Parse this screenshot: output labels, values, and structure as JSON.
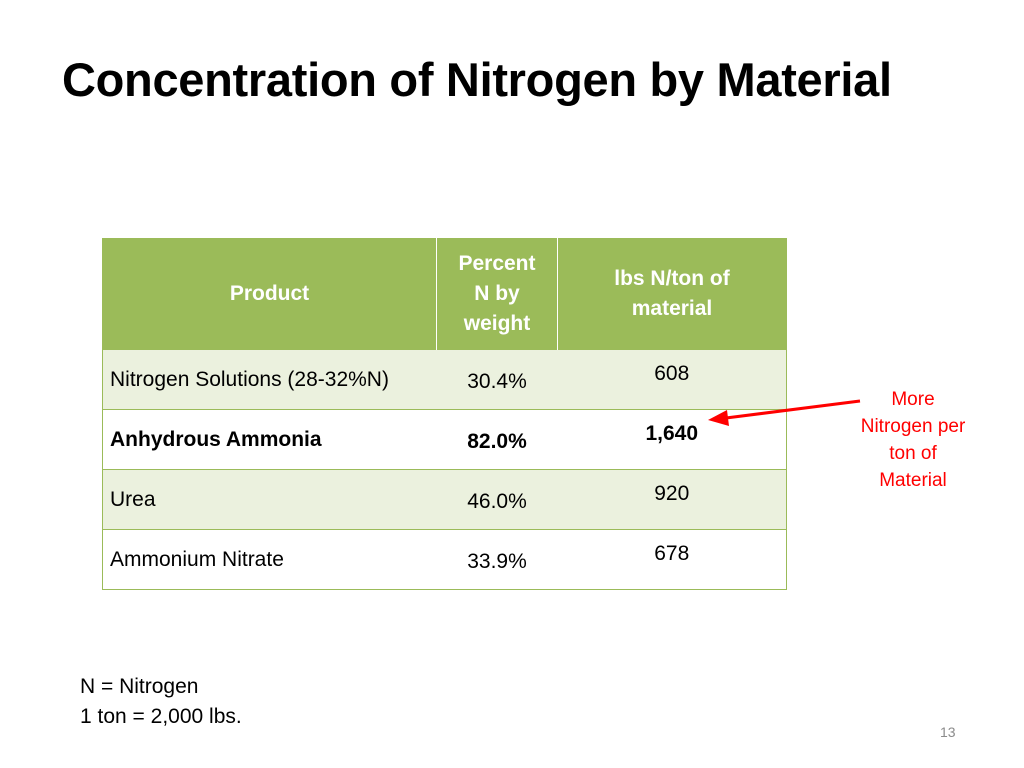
{
  "slide": {
    "title": "Concentration of Nitrogen by Material",
    "page_number": "13",
    "accent_color": "#9bbb59",
    "row_shade_color": "#ebf1de",
    "callout_color": "#ff0000"
  },
  "table": {
    "headers": {
      "product": "Product",
      "percent_lines": [
        "Percent",
        "N by",
        "weight"
      ],
      "lbs_lines": [
        "lbs N/ton of",
        "material"
      ]
    },
    "rows": [
      {
        "product": "Nitrogen Solutions (28-32%N)",
        "percent": "30.4%",
        "lbs": "608",
        "bold": false
      },
      {
        "product": "Anhydrous Ammonia",
        "percent": "82.0%",
        "lbs": "1,640",
        "bold": true
      },
      {
        "product": "Urea",
        "percent": "46.0%",
        "lbs": "920",
        "bold": false
      },
      {
        "product": "Ammonium Nitrate",
        "percent": "33.9%",
        "lbs": "678",
        "bold": false
      }
    ]
  },
  "callout": {
    "lines": [
      "More",
      "Nitrogen per",
      "ton of",
      "Material"
    ]
  },
  "footnotes": [
    "N = Nitrogen",
    "1 ton = 2,000 lbs."
  ]
}
